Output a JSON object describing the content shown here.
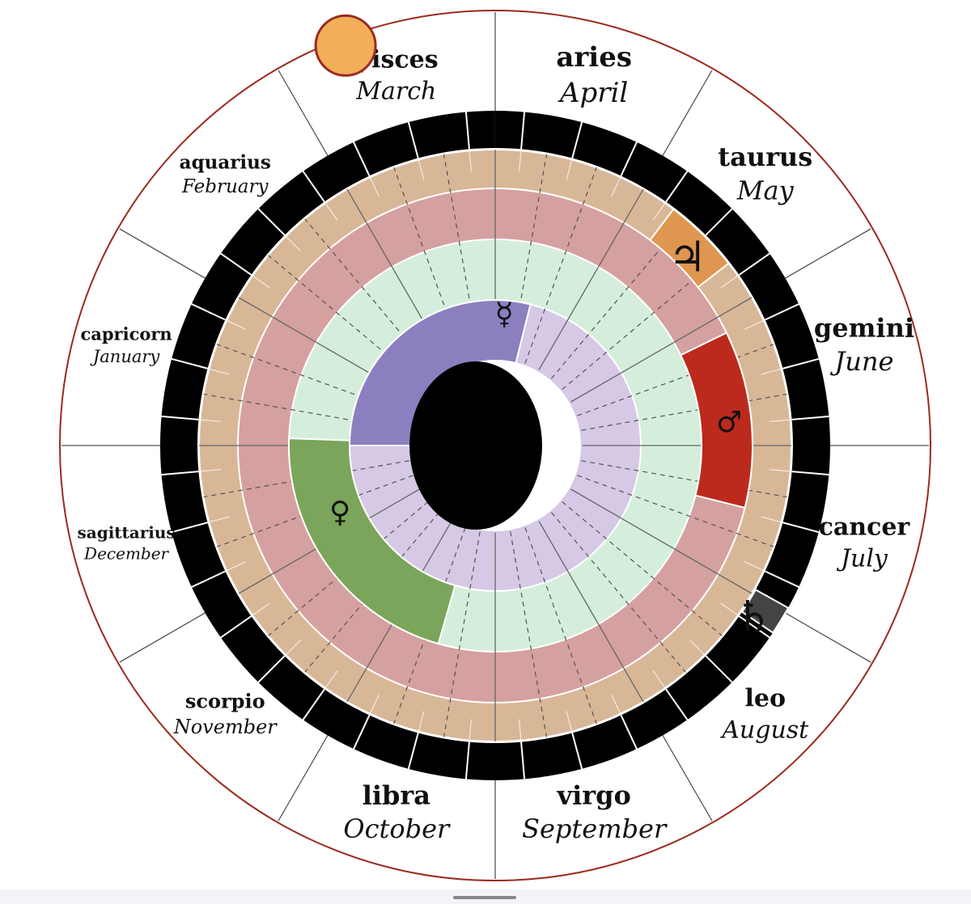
{
  "signs": [
    {
      "name": "aries",
      "month": "April"
    },
    {
      "name": "taurus",
      "month": "May"
    },
    {
      "name": "gemini",
      "month": "June"
    },
    {
      "name": "cancer",
      "month": "July"
    },
    {
      "name": "leo",
      "month": "August"
    },
    {
      "name": "virgo",
      "month": "September"
    },
    {
      "name": "libra",
      "month": "October"
    },
    {
      "name": "scorpio",
      "month": "November"
    },
    {
      "name": "sagittarius",
      "month": "December"
    },
    {
      "name": "capricorn",
      "month": "January"
    },
    {
      "name": "aquarius",
      "month": "February"
    },
    {
      "name": "pisces",
      "month": "March"
    }
  ],
  "planets": [
    {
      "glyph": "☿"
    },
    {
      "glyph": "♂"
    },
    {
      "glyph": "♀"
    },
    {
      "glyph": "♃"
    },
    {
      "glyph": "♄"
    }
  ]
}
